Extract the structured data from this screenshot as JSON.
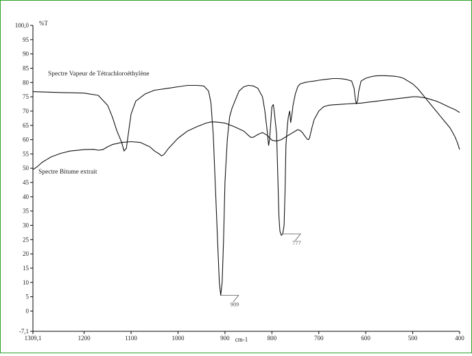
{
  "chart_data": {
    "type": "line",
    "title": "",
    "xlabel": "cm-1",
    "ylabel": "%T",
    "xlim": [
      1309.1,
      400
    ],
    "ylim": [
      -7.1,
      100.0
    ],
    "x_ticks": [
      1309.1,
      1200,
      1100,
      1000,
      900,
      800,
      700,
      600,
      500,
      400
    ],
    "x_tick_labels": [
      "1309,1",
      "1200",
      "1100",
      "1000",
      "900",
      "800",
      "700",
      "600",
      "500",
      "400"
    ],
    "y_ticks": [
      100,
      95,
      90,
      85,
      80,
      75,
      70,
      65,
      60,
      55,
      50,
      45,
      40,
      35,
      30,
      25,
      20,
      15,
      10,
      5,
      0,
      -7.1
    ],
    "y_tick_labels": [
      "100,0",
      "95",
      "90",
      "85",
      "80",
      "75",
      "70",
      "65",
      "60",
      "55",
      "50",
      "45",
      "40",
      "35",
      "30",
      "25",
      "20",
      "15",
      "10",
      "5",
      "0",
      "-7,1"
    ],
    "grid": false,
    "series": [
      {
        "name": "Spectre Vapeur de Tétrachloroéthylène",
        "x": [
          1309.1,
          1250,
          1200,
          1170,
          1150,
          1140,
          1130,
          1120,
          1115,
          1110,
          1105,
          1100,
          1090,
          1070,
          1050,
          1020,
          1000,
          980,
          960,
          945,
          935,
          930,
          925,
          920,
          915,
          912,
          909,
          906,
          903,
          900,
          895,
          890,
          885,
          880,
          870,
          860,
          850,
          840,
          830,
          820,
          815,
          810,
          807,
          805,
          802,
          800,
          797,
          795,
          790,
          787,
          785,
          783,
          780,
          777,
          774,
          772,
          770,
          767,
          765,
          762,
          760,
          757,
          755,
          750,
          745,
          740,
          730,
          720,
          710,
          700,
          690,
          680,
          670,
          660,
          650,
          640,
          630,
          625,
          622,
          620,
          617,
          615,
          610,
          600,
          590,
          580,
          570,
          560,
          550,
          540,
          530,
          520,
          510,
          500,
          490,
          480,
          470,
          460,
          450,
          440,
          430,
          420,
          410,
          405,
          400
        ],
        "y": [
          76.8,
          76.5,
          76.3,
          75.5,
          72,
          68,
          63,
          59,
          56,
          57,
          63,
          69,
          73.5,
          76,
          77.3,
          78,
          78.5,
          79,
          79,
          78.8,
          77,
          73,
          62,
          42,
          22,
          10,
          5.5,
          10,
          25,
          45,
          60,
          68,
          71,
          73,
          77,
          78.5,
          79,
          78.8,
          78,
          75,
          70,
          63,
          58,
          60,
          67,
          71.5,
          72.3,
          70,
          62,
          45,
          33,
          28,
          26.5,
          27,
          30,
          42,
          58,
          65,
          68,
          70,
          66,
          69,
          72,
          76,
          78.5,
          79.5,
          80,
          80.3,
          80.5,
          80.8,
          81,
          81.2,
          81.4,
          81.4,
          81.3,
          81,
          80.5,
          78,
          74,
          72.5,
          74,
          77,
          80.5,
          81.5,
          82,
          82.3,
          82.4,
          82.4,
          82.3,
          82.2,
          82,
          81.5,
          80.5,
          79.5,
          78,
          76,
          74,
          72,
          70,
          68,
          66,
          64,
          61,
          59,
          56.5
        ]
      },
      {
        "name": "Spectre Bitume extrait",
        "x": [
          1309.1,
          1300,
          1290,
          1280,
          1270,
          1250,
          1230,
          1200,
          1180,
          1170,
          1160,
          1150,
          1140,
          1120,
          1100,
          1080,
          1060,
          1050,
          1040,
          1035,
          1030,
          1020,
          1000,
          980,
          960,
          940,
          930,
          920,
          900,
          880,
          860,
          850,
          845,
          840,
          830,
          820,
          810,
          800,
          790,
          780,
          770,
          760,
          750,
          745,
          740,
          735,
          730,
          725,
          722,
          720,
          715,
          710,
          700,
          690,
          680,
          670,
          660,
          650,
          640,
          630,
          620,
          610,
          600,
          590,
          580,
          570,
          560,
          550,
          540,
          530,
          520,
          510,
          500,
          490,
          480,
          470,
          460,
          450,
          440,
          430,
          420,
          410,
          400
        ],
        "y": [
          49.5,
          50.5,
          52,
          53,
          54,
          55.2,
          56,
          56.5,
          56.6,
          56.3,
          56.5,
          57.5,
          58.3,
          59,
          59.3,
          59,
          57.5,
          56,
          55,
          54.3,
          54.8,
          57,
          60.5,
          63,
          64.5,
          65.8,
          66.2,
          66.2,
          65.8,
          64.5,
          63,
          61.5,
          60.8,
          60.8,
          61.8,
          62.5,
          61.5,
          59.8,
          59.5,
          60,
          61,
          62,
          63,
          63.5,
          63.2,
          62.5,
          61.3,
          60.2,
          60,
          60.5,
          64,
          67,
          70,
          71.5,
          72,
          72.2,
          72.3,
          72.4,
          72.5,
          72.6,
          72.7,
          72.8,
          73,
          73.2,
          73.4,
          73.6,
          73.8,
          74,
          74.2,
          74.4,
          74.6,
          74.8,
          75,
          75,
          74.8,
          74.5,
          74,
          73.5,
          72.8,
          72,
          71.2,
          70.5,
          69.5
        ]
      }
    ],
    "annotations": [
      {
        "label": "909",
        "x": 909,
        "y": 5.5
      },
      {
        "label": "777",
        "x": 777,
        "y": 27
      }
    ]
  }
}
